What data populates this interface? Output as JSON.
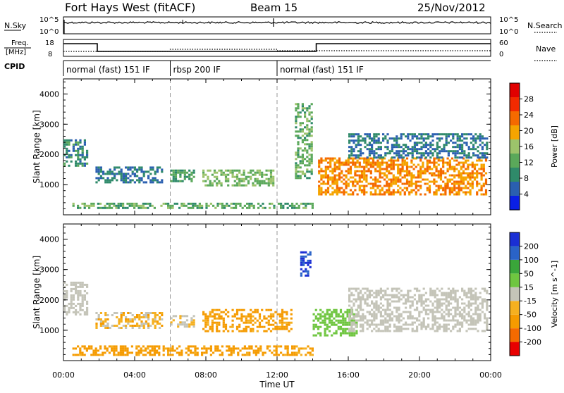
{
  "header": {
    "radar": "Fort Hays West (fitACF)",
    "beam": "Beam 15",
    "date": "25/Nov/2012"
  },
  "strip_labels": {
    "nsky": "N.Sky",
    "nsearch": "N.Search",
    "freq_top": "Freq.",
    "freq_unit": "[MHz]",
    "nave": "Nave",
    "cpid": "CPID"
  },
  "noise_ticks": {
    "left_top": "10^5",
    "left_bot": "10^0",
    "right_top": "10^5",
    "right_bot": "10^0"
  },
  "freq_ticks": {
    "left_top": "18",
    "left_bot": "8",
    "right_top": "60",
    "right_bot": "0"
  },
  "cpid_segments": [
    {
      "label": "normal (fast) 151 IF",
      "start_h": 0,
      "end_h": 6
    },
    {
      "label": "rbsp 200 IF",
      "start_h": 6,
      "end_h": 12
    },
    {
      "label": "normal (fast) 151 IF",
      "start_h": 12,
      "end_h": 24
    }
  ],
  "colors": {
    "power_scale": [
      "#0a1fe6",
      "#2a5fb0",
      "#2f8a6a",
      "#5aa85a",
      "#9cc36b",
      "#f5a400",
      "#f56a00",
      "#f22a00",
      "#e10000"
    ],
    "velocity_scale": [
      "#e80000",
      "#f56a00",
      "#f59b00",
      "#f5b020",
      "#c4c4b8",
      "#6fc640",
      "#3aa63a",
      "#2a63c8",
      "#1a2fd4"
    ]
  },
  "chart_data": [
    {
      "type": "heatmap",
      "title": "Power",
      "ylabel": "Slant Range [km]",
      "xlabel": "Time UT",
      "xlim": [
        "00:00",
        "24:00"
      ],
      "ylim": [
        0,
        4500
      ],
      "x_tick_labels": [
        "00:00",
        "04:00",
        "08:00",
        "12:00",
        "16:00",
        "20:00",
        "00:00"
      ],
      "y_tick_labels": [
        "1000",
        "2000",
        "3000",
        "4000"
      ],
      "colorbar": {
        "label": "Power [dB]",
        "ticks": [
          "4",
          "8",
          "12",
          "16",
          "20",
          "24",
          "28"
        ]
      },
      "regions": [
        {
          "t_start": 0.0,
          "t_end": 1.3,
          "range_low": 1600,
          "range_high": 2500,
          "level": 8
        },
        {
          "t_start": 1.8,
          "t_end": 5.5,
          "range_low": 1100,
          "range_high": 1600,
          "level": 6
        },
        {
          "t_start": 6.0,
          "t_end": 7.3,
          "range_low": 1100,
          "range_high": 1500,
          "level": 10
        },
        {
          "t_start": 7.8,
          "t_end": 11.8,
          "range_low": 1000,
          "range_high": 1500,
          "level": 14
        },
        {
          "t_start": 13.0,
          "t_end": 14.0,
          "range_low": 1200,
          "range_high": 3700,
          "level": 12
        },
        {
          "t_start": 14.3,
          "t_end": 23.8,
          "range_low": 700,
          "range_high": 1900,
          "level": 22
        },
        {
          "t_start": 16.0,
          "t_end": 23.8,
          "range_low": 1900,
          "range_high": 2700,
          "level": 6
        },
        {
          "t_start": 0.5,
          "t_end": 14.0,
          "range_low": 200,
          "range_high": 400,
          "level": 12
        }
      ]
    },
    {
      "type": "heatmap",
      "title": "Velocity",
      "ylabel": "Slant Range [km]",
      "xlabel": "Time UT",
      "xlim": [
        "00:00",
        "24:00"
      ],
      "ylim": [
        0,
        4500
      ],
      "x_tick_labels": [
        "00:00",
        "04:00",
        "08:00",
        "12:00",
        "16:00",
        "20:00",
        "00:00"
      ],
      "y_tick_labels": [
        "1000",
        "2000",
        "3000",
        "4000"
      ],
      "colorbar": {
        "label": "Velocity [m s^-1]",
        "ticks": [
          "-200",
          "-100",
          "-50",
          "-15",
          "15",
          "50",
          "100",
          "200"
        ]
      },
      "regions": [
        {
          "t_start": 0.0,
          "t_end": 1.3,
          "range_low": 1500,
          "range_high": 2600,
          "vel": 0
        },
        {
          "t_start": 1.8,
          "t_end": 5.5,
          "range_low": 1100,
          "range_high": 1600,
          "vel": -20
        },
        {
          "t_start": 6.0,
          "t_end": 7.3,
          "range_low": 1100,
          "range_high": 1500,
          "vel": -10
        },
        {
          "t_start": 7.8,
          "t_end": 12.8,
          "range_low": 1000,
          "range_high": 1700,
          "vel": -40
        },
        {
          "t_start": 13.3,
          "t_end": 13.9,
          "range_low": 2800,
          "range_high": 3600,
          "vel": 200
        },
        {
          "t_start": 14.0,
          "t_end": 16.5,
          "range_low": 800,
          "range_high": 1700,
          "vel": 30
        },
        {
          "t_start": 16.0,
          "t_end": 23.8,
          "range_low": 1000,
          "range_high": 2400,
          "vel": 0
        },
        {
          "t_start": 0.5,
          "t_end": 14.0,
          "range_low": 200,
          "range_high": 500,
          "vel": -40
        }
      ]
    }
  ]
}
